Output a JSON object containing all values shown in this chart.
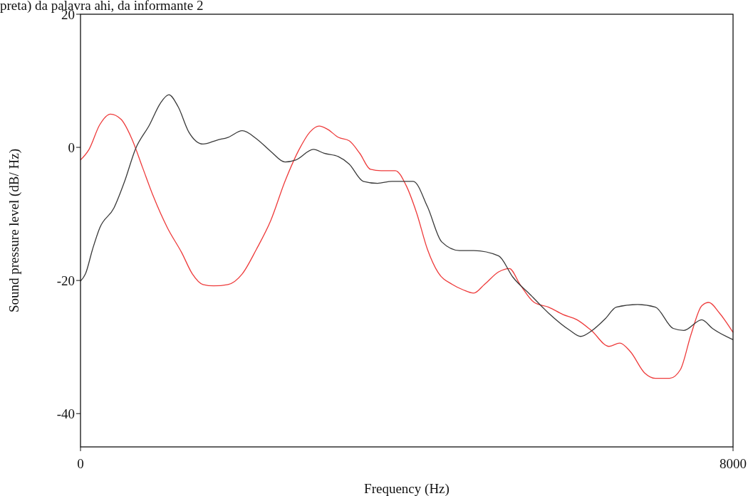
{
  "chart_data": {
    "type": "line",
    "title": "preta) da palavra ahi, da informante 2",
    "xlabel": "Frequency (Hz)",
    "ylabel": "Sound pressure level (dB/ Hz)",
    "xlim": [
      0,
      8000
    ],
    "xticks": [
      0,
      8000
    ],
    "ylim": [
      -45,
      20
    ],
    "yticks": [
      -40,
      -20,
      0,
      20
    ],
    "grid": false,
    "marker": "none",
    "line_style": "solid",
    "series": [
      {
        "color": "#ee3b3b",
        "x": [
          0,
          105,
          236,
          367,
          498,
          629,
          760,
          891,
          1066,
          1240,
          1371,
          1502,
          1633,
          1808,
          1983,
          2157,
          2332,
          2507,
          2681,
          2812,
          2926,
          3031,
          3162,
          3293,
          3424,
          3555,
          3686,
          3860,
          3991,
          4122,
          4253,
          4384,
          4559,
          4690,
          4821,
          4952,
          5127,
          5258,
          5389,
          5563,
          5738,
          5913,
          6087,
          6262,
          6480,
          6611,
          6742,
          6917,
          7048,
          7223,
          7354,
          7485,
          7616,
          7703,
          7834,
          8000
        ],
        "values": [
          -1.9,
          -0.3,
          3.4,
          5.0,
          4.2,
          1.3,
          -3.0,
          -7.3,
          -12.1,
          -15.8,
          -19.0,
          -20.6,
          -20.8,
          -20.6,
          -19.0,
          -15.3,
          -11.0,
          -5.1,
          -0.3,
          2.3,
          3.2,
          2.7,
          1.5,
          1.0,
          -0.9,
          -3.3,
          -3.5,
          -3.5,
          -5.7,
          -9.9,
          -15.3,
          -18.8,
          -20.6,
          -21.4,
          -21.9,
          -20.6,
          -18.7,
          -18.2,
          -20.6,
          -23.3,
          -24.0,
          -25.1,
          -25.9,
          -27.5,
          -29.9,
          -29.4,
          -30.7,
          -33.9,
          -34.7,
          -34.7,
          -33.4,
          -28.1,
          -23.8,
          -23.3,
          -24.9,
          -27.8
        ]
      },
      {
        "color": "#3a3a3a",
        "x": [
          0,
          61,
          148,
          236,
          410,
          541,
          672,
          847,
          978,
          1083,
          1197,
          1328,
          1502,
          1677,
          1808,
          1983,
          2157,
          2332,
          2507,
          2638,
          2856,
          2987,
          3162,
          3293,
          3467,
          3642,
          3817,
          4079,
          4253,
          4428,
          4646,
          4821,
          5127,
          5301,
          5520,
          5738,
          6000,
          6131,
          6262,
          6437,
          6568,
          6830,
          7048,
          7266,
          7397,
          7616,
          7747,
          8000
        ],
        "values": [
          -20.1,
          -19.0,
          -15.3,
          -12.1,
          -9.1,
          -5.1,
          -0.3,
          3.4,
          6.6,
          7.9,
          6.1,
          2.3,
          0.5,
          1.1,
          1.5,
          2.5,
          1.3,
          -0.6,
          -2.2,
          -1.9,
          -0.3,
          -0.9,
          -1.4,
          -2.5,
          -5.1,
          -5.4,
          -5.1,
          -5.1,
          -8.9,
          -14.2,
          -15.5,
          -15.5,
          -16.3,
          -19.5,
          -22.2,
          -24.9,
          -27.5,
          -28.4,
          -27.6,
          -25.7,
          -24.0,
          -23.6,
          -24.0,
          -27.2,
          -27.5,
          -25.9,
          -27.2,
          -28.9
        ]
      }
    ]
  }
}
